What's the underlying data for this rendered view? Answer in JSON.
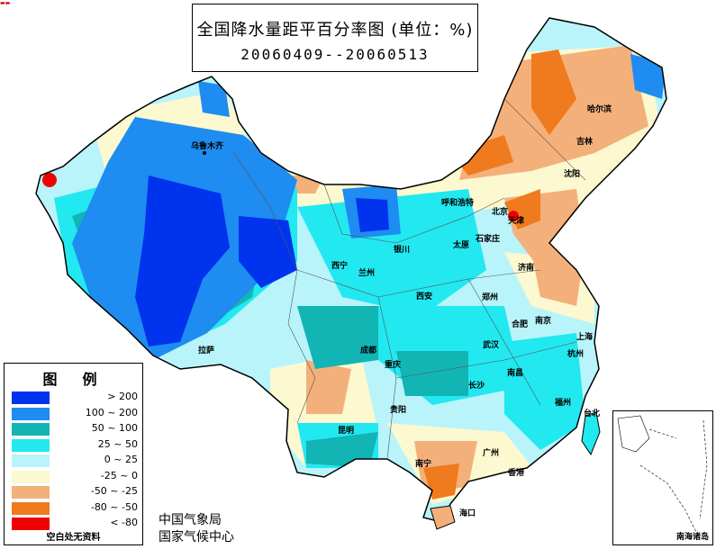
{
  "title": {
    "main": "全国降水量距平百分率图 (单位：%)",
    "dates": "20060409--20060513"
  },
  "legend": {
    "title": "图例",
    "items": [
      {
        "label": "> 200",
        "color": "#0033ee"
      },
      {
        "label": "100 ~ 200",
        "color": "#1e8cf0"
      },
      {
        "label": "50 ~ 100",
        "color": "#12b4b4"
      },
      {
        "label": "25 ~ 50",
        "color": "#22e8f0"
      },
      {
        "label": "0 ~ 25",
        "color": "#b8f4fa"
      },
      {
        "label": "-25 ~ 0",
        "color": "#fcf8d0"
      },
      {
        "label": "-50 ~ -25",
        "color": "#f4b07a"
      },
      {
        "label": "-80 ~ -50",
        "color": "#f07a1e"
      },
      {
        "label": "< -80",
        "color": "#f00000"
      }
    ],
    "note": "空白处无资料"
  },
  "agency": {
    "line1": "中国气象局",
    "line2": "国家气候中心"
  },
  "inset": {
    "label": "南海诸岛"
  },
  "cities": {
    "wulumuqi": "乌鲁木齐",
    "huhehaote": "呼和浩特",
    "haerbin": "哈尔滨",
    "changchun": "吉林",
    "shenyang": "沈阳",
    "beijing": "北京",
    "tianjin": "天津",
    "shijiazhuang": "石家庄",
    "taiyuan": "太原",
    "yinchuan": "银川",
    "xining": "西宁",
    "lanzhou": "兰州",
    "jinan": "济南",
    "xian": "西安",
    "zhengzhou": "郑州",
    "hefei": "合肥",
    "nanjing": "南京",
    "shanghai": "上海",
    "lasa": "拉萨",
    "chengdu": "成都",
    "chongqing": "重庆",
    "wuhan": "武汉",
    "hangzhou": "杭州",
    "nanchang": "南昌",
    "changsha": "长沙",
    "fuzhou": "福州",
    "guiyang": "贵阳",
    "kunming": "昆明",
    "nanning": "南宁",
    "guangzhou": "广州",
    "xianggang": "香港",
    "haikou": "海口",
    "taibei": "台北"
  }
}
